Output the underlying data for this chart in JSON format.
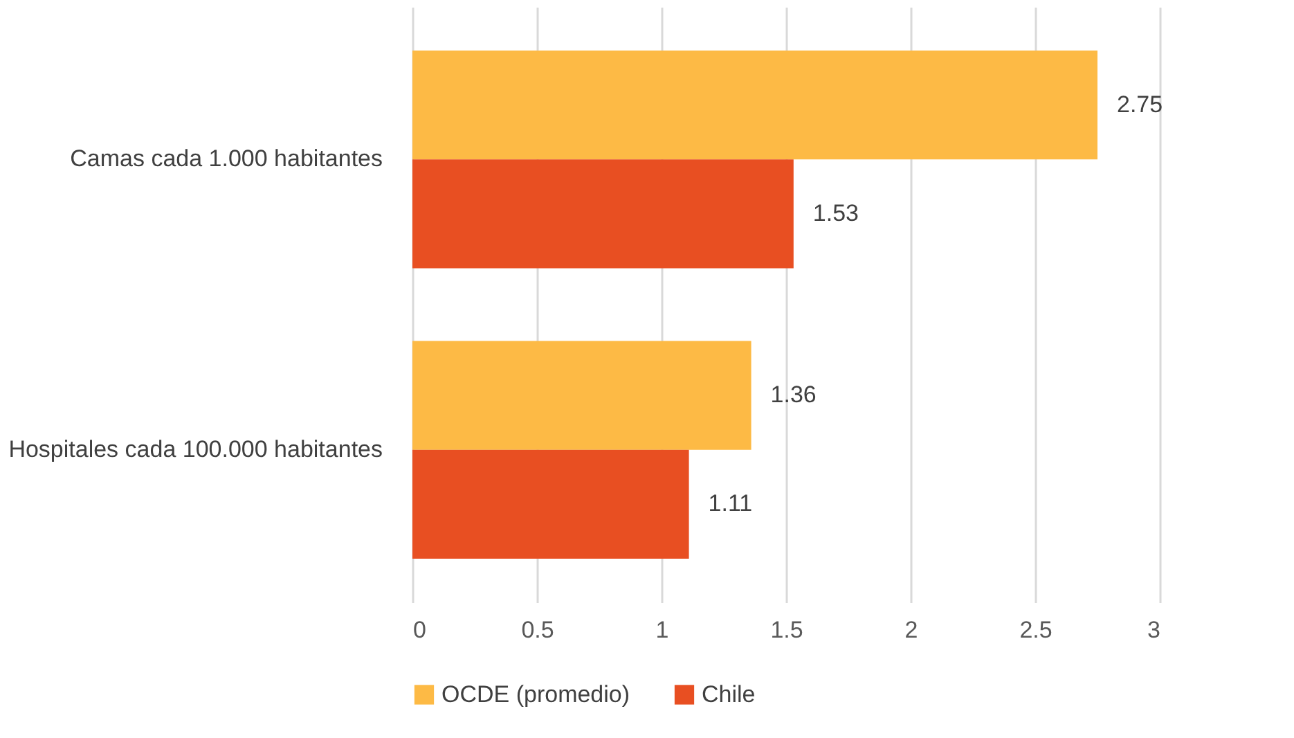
{
  "chart_data": {
    "type": "bar",
    "orientation": "horizontal",
    "categories": [
      "Camas cada 1.000 habitantes",
      "Hospitales cada 100.000 habitantes"
    ],
    "series": [
      {
        "name": "OCDE (promedio)",
        "color": "#fdba45",
        "values": [
          2.75,
          1.36
        ]
      },
      {
        "name": "Chile",
        "color": "#e84f22",
        "values": [
          1.53,
          1.11
        ]
      }
    ],
    "xlim": [
      0,
      3
    ],
    "xticks": [
      0,
      0.5,
      1,
      1.5,
      2,
      2.5,
      3
    ],
    "grid": "x",
    "legend": "bottom",
    "data_labels": true
  }
}
